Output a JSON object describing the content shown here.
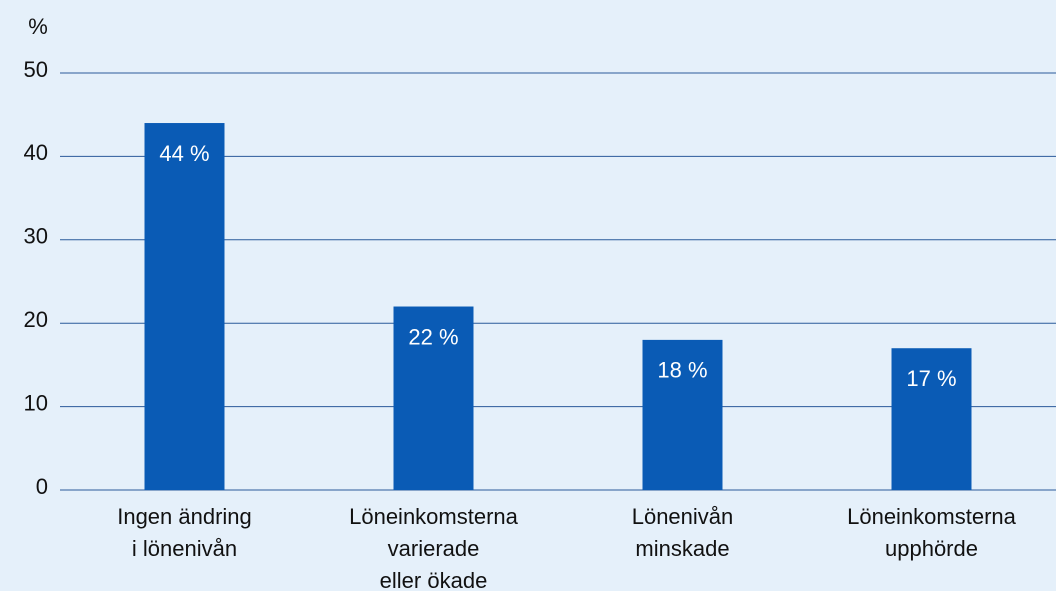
{
  "chart_data": {
    "type": "bar",
    "y_label": "%",
    "categories": [
      [
        "Ingen ändring",
        "i lönenivån"
      ],
      [
        "Löneinkomsterna",
        "varierade",
        "eller ökade"
      ],
      [
        "Lönenivån",
        "minskade"
      ],
      [
        "Löneinkomsterna",
        "upphörde"
      ]
    ],
    "values": [
      44,
      22,
      18,
      17
    ],
    "value_labels": [
      "44 %",
      "22 %",
      "18 %",
      "17 %"
    ],
    "color": "#0a5bb5",
    "ylim": [
      0,
      50
    ],
    "yticks": [
      0,
      10,
      20,
      30,
      40,
      50
    ],
    "grid": true
  }
}
